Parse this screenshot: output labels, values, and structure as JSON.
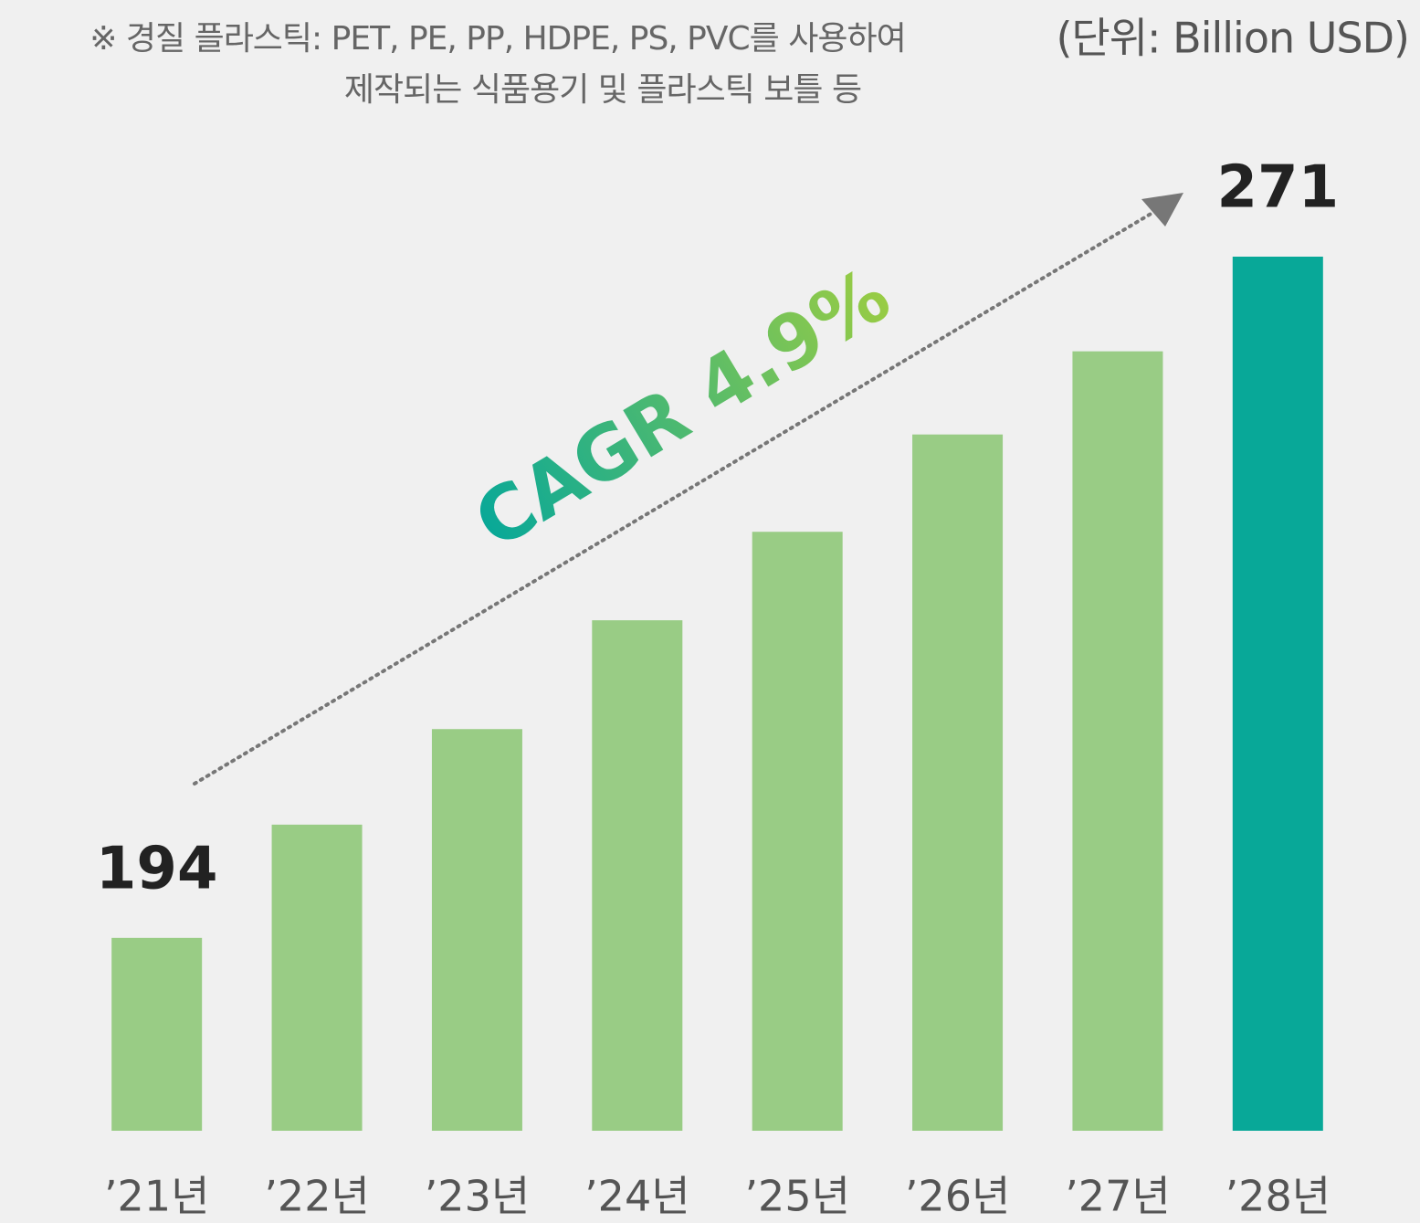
{
  "chart_data": {
    "type": "bar",
    "annotations": [
      "※ 경질 플라스틱: PET, PE, PP, HDPE, PS, PVC를 사용하여",
      "제작되는 식품용기 및 플라스틱 보틀 등"
    ],
    "unit": "(단위: Billion USD)",
    "cagr": "CAGR 4.9%",
    "categories": [
      "’21년",
      "’22년",
      "’23년",
      "’24년",
      "’25년",
      "’26년",
      "’27년",
      "’28년"
    ],
    "values": [
      194,
      206.8,
      217.6,
      229.9,
      239.9,
      250.9,
      260.3,
      271
    ],
    "value_labels": [
      "194",
      null,
      null,
      null,
      null,
      null,
      null,
      "271"
    ],
    "colors": [
      "#99cc85",
      "#99cc85",
      "#99cc85",
      "#99cc85",
      "#99cc85",
      "#99cc85",
      "#99cc85",
      "#08a898"
    ],
    "ylim": [
      172.2,
      271
    ]
  }
}
